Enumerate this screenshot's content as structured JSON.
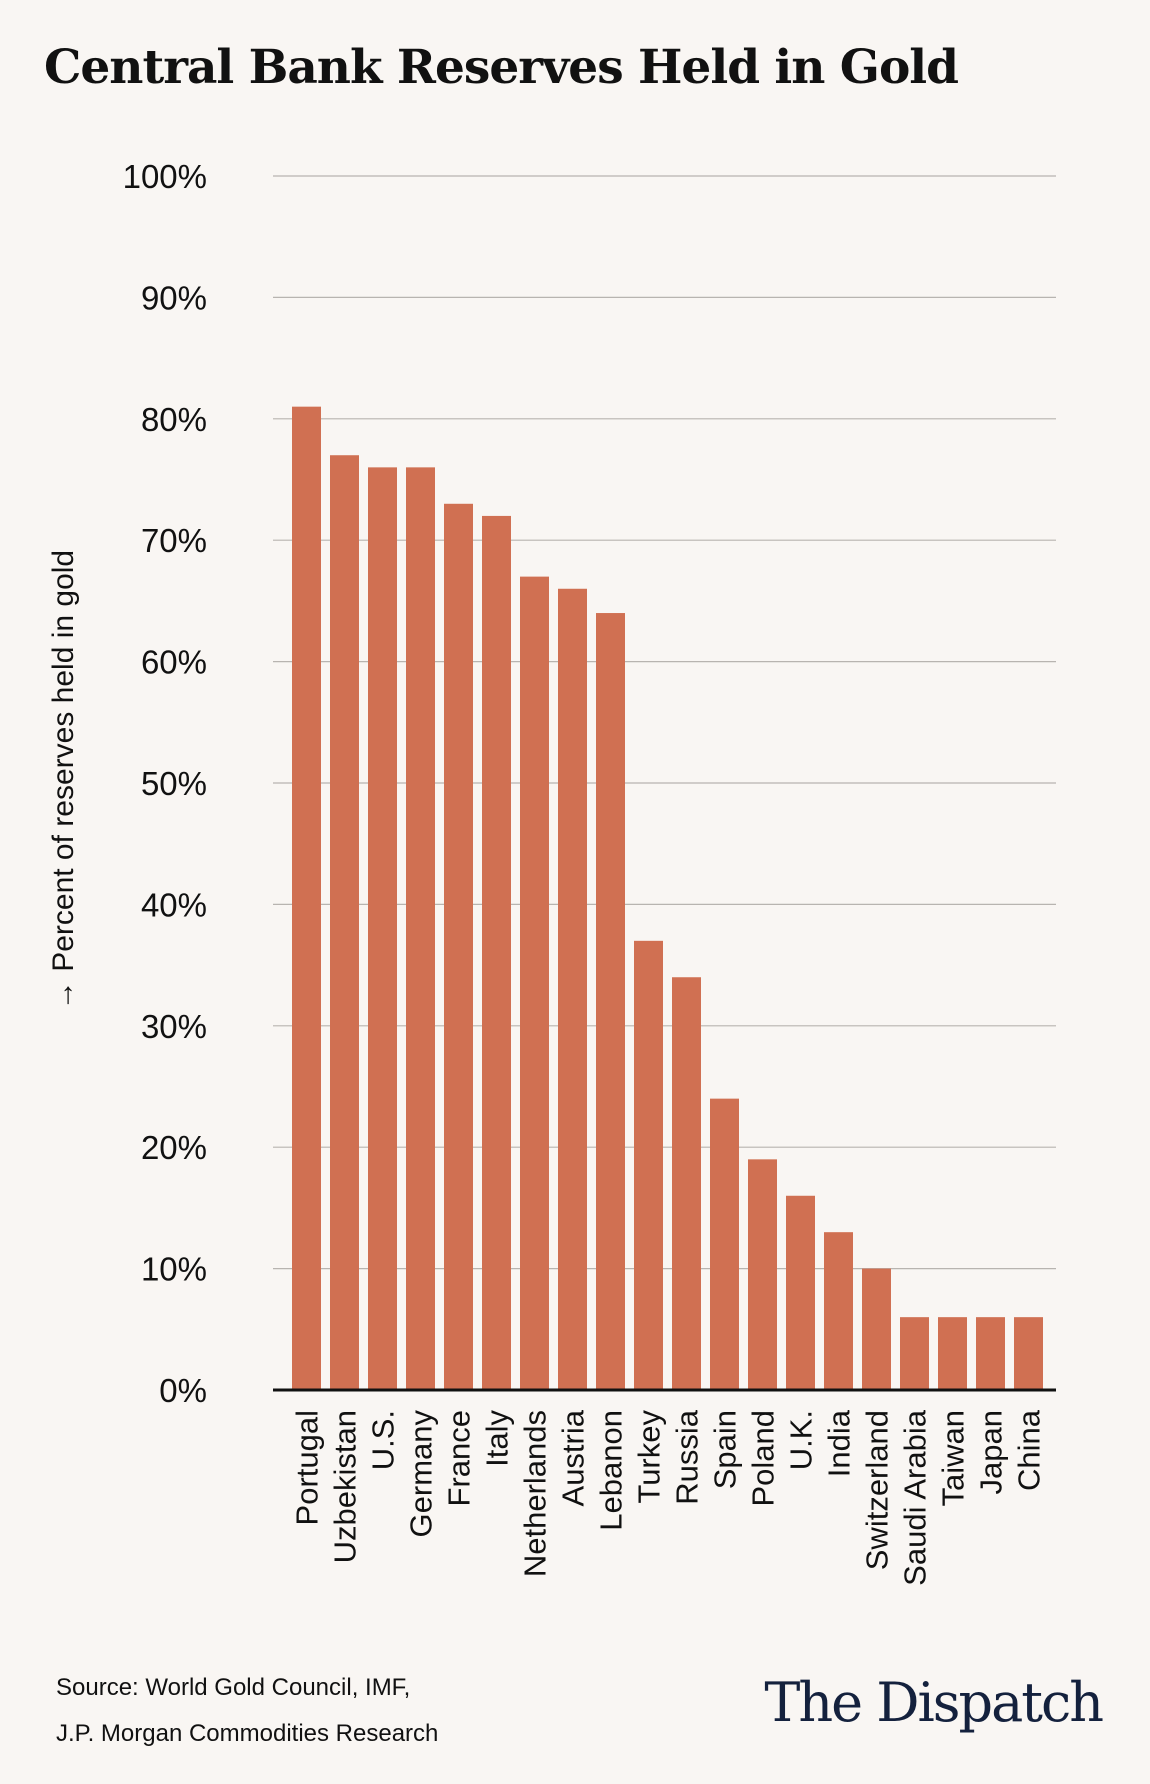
{
  "chart_data": {
    "type": "bar",
    "title": "Central Bank Reserves Held in Gold",
    "ylabel": "→ Percent of reserves held in gold",
    "xlabel": "",
    "ylim": [
      0,
      100
    ],
    "yticks": [
      0,
      10,
      20,
      30,
      40,
      50,
      60,
      70,
      80,
      90,
      100
    ],
    "ytick_labels": [
      "0%",
      "10%",
      "20%",
      "30%",
      "40%",
      "50%",
      "60%",
      "70%",
      "80%",
      "90%",
      "100%"
    ],
    "grid": true,
    "categories": [
      "Portugal",
      "Uzbekistan",
      "U.S.",
      "Germany",
      "France",
      "Italy",
      "Netherlands",
      "Austria",
      "Lebanon",
      "Turkey",
      "Russia",
      "Spain",
      "Poland",
      "U.K.",
      "India",
      "Switzerland",
      "Saudi Arabia",
      "Taiwan",
      "Japan",
      "China"
    ],
    "values": [
      81,
      77,
      76,
      76,
      73,
      72,
      67,
      66,
      64,
      37,
      34,
      24,
      19,
      16,
      13,
      10,
      6,
      6,
      6,
      6
    ],
    "bar_color": "#d07052",
    "grid_color": "#b8b4b0",
    "axis_color": "#111111"
  },
  "footer": {
    "source_line1": "Source: World Gold Council, IMF,",
    "source_line2": "J.P. Morgan Commodities Research",
    "logo": "The Dispatch"
  }
}
